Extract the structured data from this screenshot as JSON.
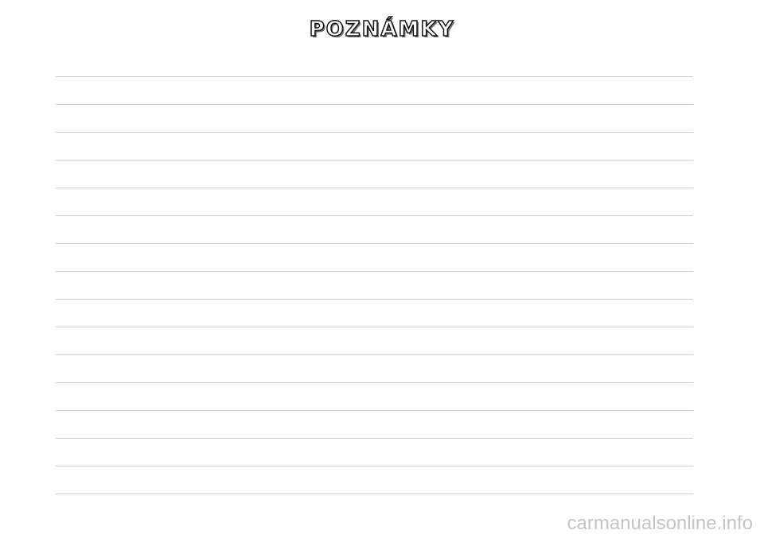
{
  "header": {
    "title": "POZNÁMKY"
  },
  "footer": {
    "watermark": "carmanualsonline.info"
  }
}
